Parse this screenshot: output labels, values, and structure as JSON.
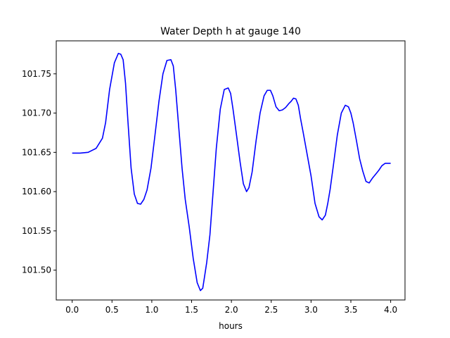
{
  "chart_data": {
    "type": "line",
    "title": "Water Depth h at gauge 140",
    "xlabel": "hours",
    "ylabel": "",
    "xlim": [
      -0.2,
      4.18
    ],
    "ylim": [
      101.462,
      101.792
    ],
    "xticks": [
      0.0,
      0.5,
      1.0,
      1.5,
      2.0,
      2.5,
      3.0,
      3.5,
      4.0
    ],
    "xtick_labels": [
      "0.0",
      "0.5",
      "1.0",
      "1.5",
      "2.0",
      "2.5",
      "3.0",
      "3.5",
      "4.0"
    ],
    "yticks": [
      101.5,
      101.55,
      101.6,
      101.65,
      101.7,
      101.75
    ],
    "ytick_labels": [
      "101.50",
      "101.55",
      "101.60",
      "101.65",
      "101.70",
      "101.75"
    ],
    "grid": false,
    "series": [
      {
        "color": "#0000ff",
        "x": [
          0.0,
          0.1,
          0.2,
          0.3,
          0.38,
          0.42,
          0.47,
          0.53,
          0.58,
          0.61,
          0.64,
          0.67,
          0.7,
          0.74,
          0.78,
          0.82,
          0.86,
          0.9,
          0.94,
          0.99,
          1.04,
          1.09,
          1.14,
          1.19,
          1.24,
          1.27,
          1.3,
          1.34,
          1.38,
          1.42,
          1.47,
          1.52,
          1.57,
          1.61,
          1.64,
          1.66,
          1.69,
          1.73,
          1.77,
          1.81,
          1.86,
          1.91,
          1.96,
          1.99,
          2.02,
          2.06,
          2.11,
          2.15,
          2.19,
          2.22,
          2.26,
          2.31,
          2.36,
          2.41,
          2.45,
          2.49,
          2.52,
          2.56,
          2.6,
          2.64,
          2.68,
          2.72,
          2.75,
          2.78,
          2.81,
          2.84,
          2.87,
          2.9,
          2.95,
          3.0,
          3.05,
          3.1,
          3.14,
          3.18,
          3.21,
          3.24,
          3.28,
          3.33,
          3.38,
          3.43,
          3.47,
          3.5,
          3.53,
          3.57,
          3.61,
          3.65,
          3.69,
          3.73,
          3.77,
          3.81,
          3.85,
          3.89,
          3.93,
          3.97,
          4.0
        ],
        "y": [
          101.649,
          101.649,
          101.65,
          101.655,
          101.668,
          101.688,
          101.73,
          101.764,
          101.776,
          101.775,
          101.768,
          101.738,
          101.69,
          101.63,
          101.597,
          101.585,
          101.584,
          101.59,
          101.602,
          101.63,
          101.672,
          101.715,
          101.75,
          101.767,
          101.768,
          101.76,
          101.73,
          101.68,
          101.63,
          101.59,
          101.555,
          101.515,
          101.484,
          101.474,
          101.477,
          101.49,
          101.51,
          101.545,
          101.6,
          101.655,
          101.705,
          101.73,
          101.732,
          101.725,
          101.705,
          101.675,
          101.637,
          101.61,
          101.6,
          101.605,
          101.625,
          101.665,
          101.7,
          101.722,
          101.729,
          101.729,
          101.722,
          101.708,
          101.703,
          101.704,
          101.707,
          101.712,
          101.715,
          101.719,
          101.718,
          101.71,
          101.692,
          101.676,
          101.648,
          101.62,
          101.585,
          101.568,
          101.564,
          101.57,
          101.585,
          101.603,
          101.633,
          101.672,
          101.7,
          101.71,
          101.708,
          101.7,
          101.687,
          101.665,
          101.642,
          101.626,
          101.613,
          101.611,
          101.617,
          101.622,
          101.627,
          101.633,
          101.636,
          101.636,
          101.636
        ]
      }
    ]
  }
}
